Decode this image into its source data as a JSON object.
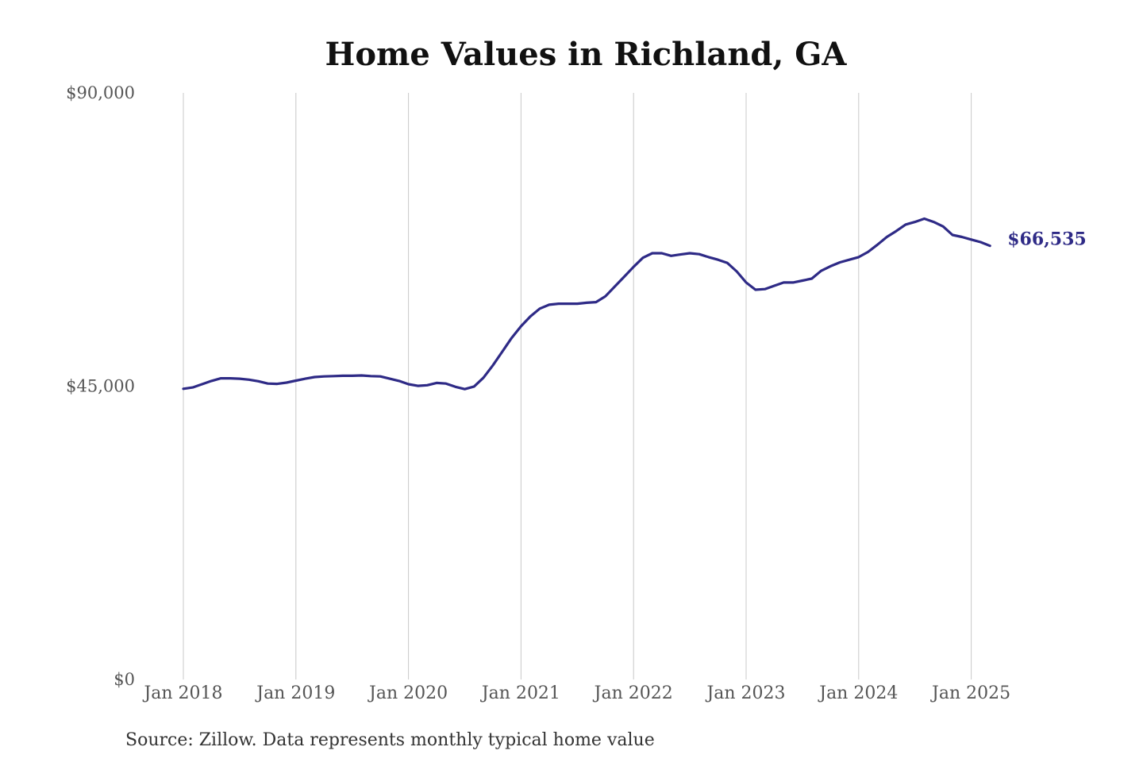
{
  "chart_data": {
    "type": "line",
    "title": "Home Values in Richland, GA",
    "xlabel": "",
    "ylabel": "",
    "source_note": "Source: Zillow. Data represents monthly typical home value",
    "ylim": [
      0,
      90000
    ],
    "y_ticks": [
      {
        "value": 0,
        "label": "$0"
      },
      {
        "value": 45000,
        "label": "$45,000"
      },
      {
        "value": 90000,
        "label": "$90,000"
      }
    ],
    "x_ticks": [
      {
        "date": "2018-01",
        "label": "Jan 2018"
      },
      {
        "date": "2019-01",
        "label": "Jan 2019"
      },
      {
        "date": "2020-01",
        "label": "Jan 2020"
      },
      {
        "date": "2021-01",
        "label": "Jan 2021"
      },
      {
        "date": "2022-01",
        "label": "Jan 2022"
      },
      {
        "date": "2023-01",
        "label": "Jan 2023"
      },
      {
        "date": "2024-01",
        "label": "Jan 2024"
      },
      {
        "date": "2025-01",
        "label": "Jan 2025"
      }
    ],
    "grid": "vertical",
    "line_color": "#2e2a86",
    "end_label": "$66,535",
    "x": [
      "2018-01",
      "2018-02",
      "2018-03",
      "2018-04",
      "2018-05",
      "2018-06",
      "2018-07",
      "2018-08",
      "2018-09",
      "2018-10",
      "2018-11",
      "2018-12",
      "2019-01",
      "2019-02",
      "2019-03",
      "2019-04",
      "2019-05",
      "2019-06",
      "2019-07",
      "2019-08",
      "2019-09",
      "2019-10",
      "2019-11",
      "2019-12",
      "2020-01",
      "2020-02",
      "2020-03",
      "2020-04",
      "2020-05",
      "2020-06",
      "2020-07",
      "2020-08",
      "2020-09",
      "2020-10",
      "2020-11",
      "2020-12",
      "2021-01",
      "2021-02",
      "2021-03",
      "2021-04",
      "2021-05",
      "2021-06",
      "2021-07",
      "2021-08",
      "2021-09",
      "2021-10",
      "2021-11",
      "2021-12",
      "2022-01",
      "2022-02",
      "2022-03",
      "2022-04",
      "2022-05",
      "2022-06",
      "2022-07",
      "2022-08",
      "2022-09",
      "2022-10",
      "2022-11",
      "2022-12",
      "2023-01",
      "2023-02",
      "2023-03",
      "2023-04",
      "2023-05",
      "2023-06",
      "2023-07",
      "2023-08",
      "2023-09",
      "2023-10",
      "2023-11",
      "2023-12",
      "2024-01",
      "2024-02",
      "2024-03",
      "2024-04",
      "2024-05",
      "2024-06",
      "2024-07",
      "2024-08",
      "2024-09",
      "2024-10",
      "2024-11",
      "2024-12",
      "2025-01",
      "2025-02",
      "2025-03"
    ],
    "values": [
      44600,
      44800,
      45300,
      45800,
      46200,
      46200,
      46150,
      46000,
      45750,
      45400,
      45350,
      45550,
      45850,
      46150,
      46400,
      46500,
      46550,
      46600,
      46600,
      46650,
      46550,
      46500,
      46150,
      45800,
      45300,
      45050,
      45150,
      45500,
      45400,
      44900,
      44550,
      44950,
      46300,
      48200,
      50300,
      52400,
      54200,
      55700,
      56900,
      57500,
      57650,
      57650,
      57650,
      57800,
      57900,
      58800,
      60300,
      61800,
      63300,
      64700,
      65400,
      65400,
      65000,
      65200,
      65400,
      65250,
      64800,
      64400,
      63900,
      62600,
      60900,
      59800,
      59900,
      60400,
      60900,
      60900,
      61200,
      61500,
      62700,
      63400,
      64000,
      64400,
      64800,
      65600,
      66700,
      67900,
      68800,
      69800,
      70200,
      70700,
      70200,
      69500,
      68200,
      67900,
      67500,
      67100,
      66535
    ]
  }
}
